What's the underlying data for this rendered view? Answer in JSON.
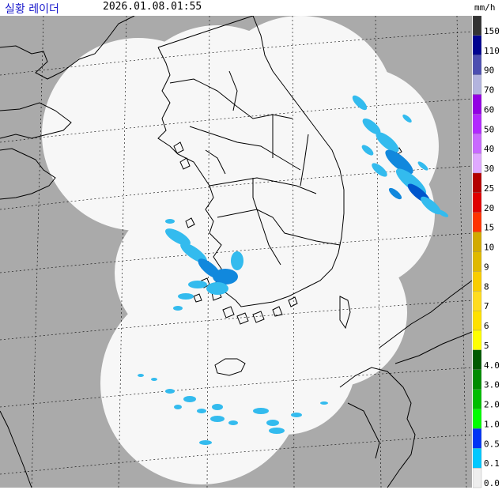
{
  "header": {
    "title": "실황 레이더",
    "timestamp": "2026.01.08.01:55",
    "unit": "mm/h"
  },
  "colors": {
    "ocean_outside_coverage": "#aaaaaa",
    "coverage_area": "#f7f7f7",
    "coastline": "#000000",
    "grid_line": "#000000",
    "light_rain": "#33bbee",
    "moderate_rain": "#1188dd",
    "heavy_rain": "#0055cc"
  },
  "legend": {
    "items": [
      {
        "label": "150",
        "color": "#333333"
      },
      {
        "label": "110",
        "color": "#000390"
      },
      {
        "label": "90",
        "color": "#4c4eb1"
      },
      {
        "label": "70",
        "color": "#b3b4de"
      },
      {
        "label": "60",
        "color": "#9300e4"
      },
      {
        "label": "50",
        "color": "#b229ff"
      },
      {
        "label": "40",
        "color": "#c969ff"
      },
      {
        "label": "30",
        "color": "#e0a9ff"
      },
      {
        "label": "25",
        "color": "#b40000"
      },
      {
        "label": "20",
        "color": "#e00000"
      },
      {
        "label": "15",
        "color": "#ff3300"
      },
      {
        "label": "10",
        "color": "#d2aa00"
      },
      {
        "label": "9",
        "color": "#e0b900"
      },
      {
        "label": "8",
        "color": "#f9cd00"
      },
      {
        "label": "7",
        "color": "#ffdc1f"
      },
      {
        "label": "6",
        "color": "#ffe100"
      },
      {
        "label": "5",
        "color": "#ffff00"
      },
      {
        "label": "4.0",
        "color": "#005a00"
      },
      {
        "label": "3.0",
        "color": "#008c00"
      },
      {
        "label": "2.0",
        "color": "#00be00"
      },
      {
        "label": "1.0",
        "color": "#00ff00"
      },
      {
        "label": "0.5",
        "color": "#0033f5"
      },
      {
        "label": "0.1",
        "color": "#00c8ff"
      },
      {
        "label": "0.0",
        "color": "#eeeeee"
      }
    ]
  }
}
